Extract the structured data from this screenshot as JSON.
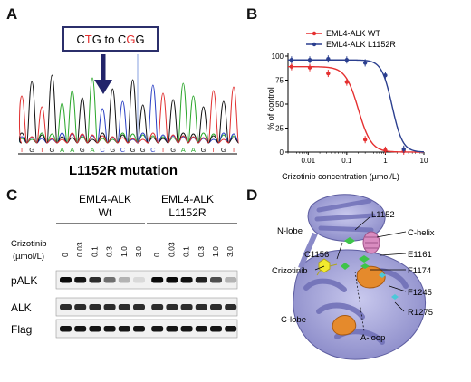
{
  "panels": {
    "A": {
      "letter": "A",
      "mutation_box": {
        "prefix": "C",
        "ref": "T",
        "mid": "G to C",
        "alt": "G",
        "suffix": "G"
      },
      "sequence": [
        "T",
        "G",
        "T",
        "G",
        "A",
        "A",
        "G",
        "A",
        "C",
        "G",
        "C",
        "G",
        "G",
        "C",
        "T",
        "G",
        "A",
        "A",
        "G",
        "T",
        "G",
        "T"
      ],
      "caption": "L1152R mutation"
    },
    "B": {
      "letter": "B",
      "chart_data": {
        "type": "line",
        "xlabel": "Crizotinib concentration (µmol/L)",
        "ylabel": "% of control",
        "x_scale": "log",
        "xlim": [
          0.003,
          10
        ],
        "ylim": [
          0,
          100
        ],
        "x_ticks": [
          "0.01",
          "0.1",
          "1",
          "10"
        ],
        "x_tick_values": [
          0.01,
          0.1,
          1,
          10
        ],
        "y_ticks": [
          "0",
          "25",
          "50",
          "75",
          "100"
        ],
        "y_tick_values": [
          0,
          25,
          50,
          75,
          100
        ],
        "legend_placement": "top-center",
        "series": [
          {
            "name": "EML4-ALK WT",
            "color": "#e53030",
            "x": [
              0.0037,
              0.011,
              0.033,
              0.1,
              0.3,
              1.0,
              3.0
            ],
            "y": [
              89,
              88,
              82,
              73,
              13,
              2,
              1
            ]
          },
          {
            "name": "EML4-ALK L1152R",
            "color": "#2b3f8f",
            "x": [
              0.0037,
              0.011,
              0.033,
              0.1,
              0.3,
              1.0,
              3.0
            ],
            "y": [
              96,
              96,
              97,
              96,
              93,
              80,
              3
            ]
          }
        ]
      }
    },
    "C": {
      "letter": "C",
      "group1": {
        "line1": "EML4-ALK",
        "line2": "Wt"
      },
      "group2": {
        "line1": "EML4-ALK",
        "line2": "L1152R"
      },
      "treatment_label": "Crizotinib",
      "unit_label": "(µmol/L)",
      "doses": [
        "0",
        "0.03",
        "0.1",
        "0.3",
        "1.0",
        "3.0",
        "0",
        "0.03",
        "0.1",
        "0.3",
        "1.0",
        "3.0"
      ],
      "rows": [
        {
          "label": "pALK",
          "intensity": [
            1.0,
            0.95,
            0.85,
            0.55,
            0.25,
            0.08,
            1.0,
            1.0,
            0.98,
            0.9,
            0.7,
            0.25
          ]
        },
        {
          "label": "ALK",
          "intensity": [
            0.85,
            0.85,
            0.85,
            0.85,
            0.85,
            0.85,
            0.85,
            0.85,
            0.85,
            0.85,
            0.85,
            0.85
          ]
        },
        {
          "label": "Flag",
          "intensity": [
            0.95,
            0.95,
            0.95,
            0.95,
            0.95,
            0.95,
            0.95,
            0.95,
            0.95,
            0.95,
            0.95,
            0.95
          ]
        }
      ]
    },
    "D": {
      "letter": "D",
      "labels": {
        "n_lobe": "N-lobe",
        "c_lobe": "C-lobe",
        "l1152": "L1152",
        "c_helix": "C-helix",
        "c1156": "C1156",
        "e1161": "E1161",
        "crizotinib": "Crizotinib",
        "f1174": "F1174",
        "f1245": "F1245",
        "r1275": "R1275",
        "a_loop": "A-loop"
      }
    }
  }
}
